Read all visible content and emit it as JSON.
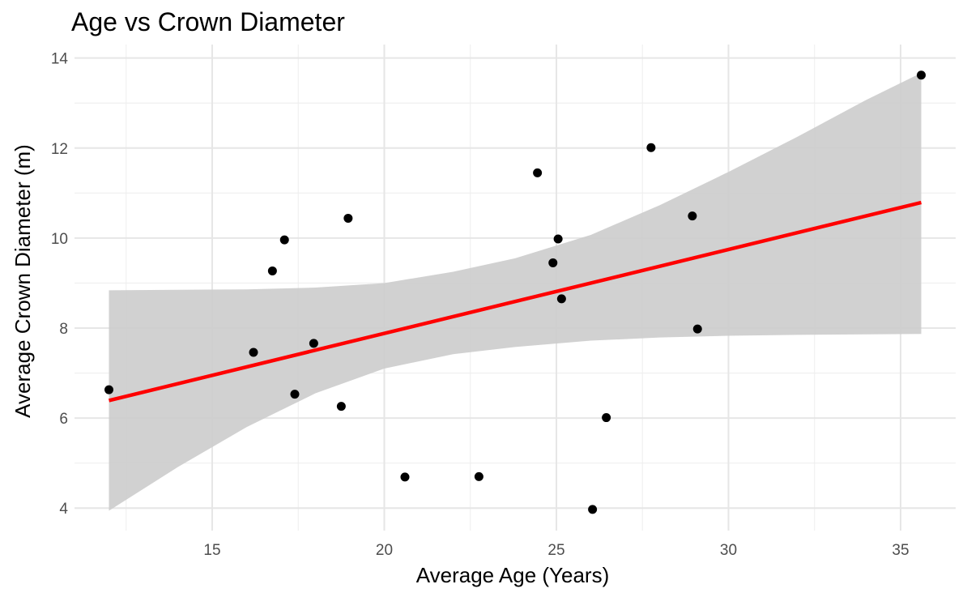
{
  "chart_data": {
    "type": "scatter",
    "title": "Age vs Crown Diameter",
    "xlabel": "Average Age (Years)",
    "ylabel": "Average Crown Diameter (m)",
    "xlim": [
      11.0,
      36.6
    ],
    "ylim": [
      3.5,
      14.3
    ],
    "x_ticks": [
      15,
      20,
      25,
      30,
      35
    ],
    "y_ticks": [
      4,
      6,
      8,
      10,
      12,
      14
    ],
    "x_tick_labels": [
      "15",
      "20",
      "25",
      "30",
      "35"
    ],
    "y_tick_labels": [
      "4",
      "6",
      "8",
      "10",
      "12",
      "14"
    ],
    "x_minor": [
      12.5,
      17.5,
      22.5,
      27.5,
      32.5
    ],
    "y_minor": [
      5,
      7,
      9,
      11,
      13
    ],
    "grid": true,
    "points": [
      {
        "x": 12.0,
        "y": 6.63
      },
      {
        "x": 16.2,
        "y": 7.46
      },
      {
        "x": 16.75,
        "y": 9.27
      },
      {
        "x": 17.1,
        "y": 9.96
      },
      {
        "x": 17.4,
        "y": 6.53
      },
      {
        "x": 17.95,
        "y": 7.66
      },
      {
        "x": 18.75,
        "y": 6.26
      },
      {
        "x": 18.95,
        "y": 10.44
      },
      {
        "x": 20.6,
        "y": 4.69
      },
      {
        "x": 22.75,
        "y": 4.7
      },
      {
        "x": 24.45,
        "y": 11.45
      },
      {
        "x": 24.9,
        "y": 9.45
      },
      {
        "x": 25.05,
        "y": 9.98
      },
      {
        "x": 25.15,
        "y": 8.65
      },
      {
        "x": 26.05,
        "y": 3.97
      },
      {
        "x": 26.45,
        "y": 6.01
      },
      {
        "x": 27.75,
        "y": 12.01
      },
      {
        "x": 28.95,
        "y": 10.49
      },
      {
        "x": 29.1,
        "y": 7.98
      },
      {
        "x": 35.6,
        "y": 13.62
      }
    ],
    "fit_line": {
      "x": [
        12.0,
        35.6
      ],
      "y": [
        6.39,
        10.79
      ],
      "color": "#ff0000"
    },
    "confidence_band": {
      "x": [
        12.0,
        14.0,
        16.0,
        18.0,
        20.0,
        22.0,
        23.8,
        26.0,
        28.0,
        30.0,
        32.0,
        34.0,
        35.6
      ],
      "lower": [
        3.94,
        4.91,
        5.8,
        6.55,
        7.1,
        7.42,
        7.58,
        7.72,
        7.79,
        7.83,
        7.85,
        7.86,
        7.87
      ],
      "upper": [
        8.84,
        8.85,
        8.86,
        8.9,
        9.0,
        9.25,
        9.55,
        10.07,
        10.73,
        11.47,
        12.25,
        13.07,
        13.67
      ],
      "color": "#cccccc"
    },
    "point_color": "#000000"
  }
}
